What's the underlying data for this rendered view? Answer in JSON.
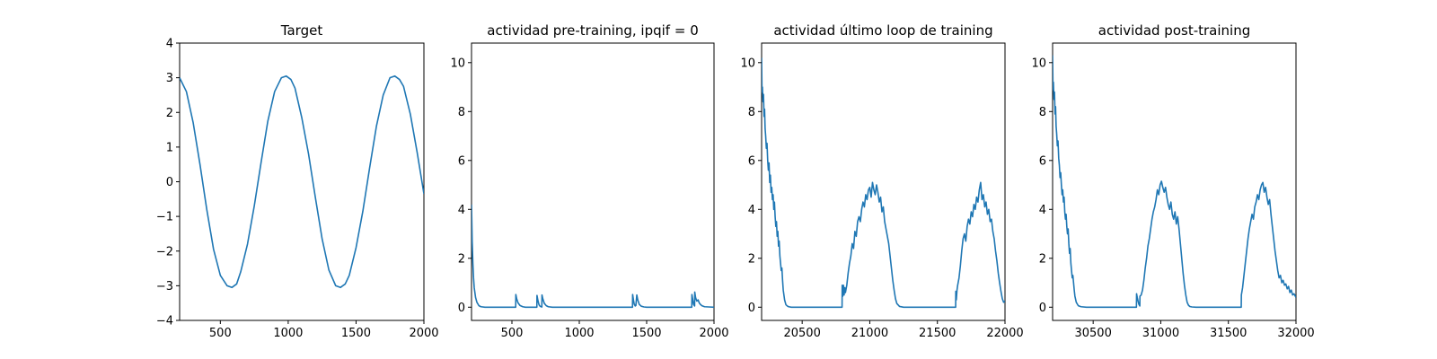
{
  "figure": {
    "line_color": "#1f77b4",
    "background": "#ffffff"
  },
  "chart_data": [
    {
      "type": "line",
      "title": "Target",
      "xlabel": "",
      "ylabel": "",
      "xlim": [
        200,
        2000
      ],
      "ylim": [
        -4,
        4
      ],
      "xticks": [
        500,
        1000,
        1500,
        2000
      ],
      "yticks": [
        -4,
        -3,
        -2,
        -1,
        0,
        1,
        2,
        3,
        4
      ],
      "grid": false,
      "series": [
        {
          "x": [
            200,
            250,
            300,
            350,
            400,
            450,
            500,
            550,
            585,
            620,
            650,
            700,
            750,
            800,
            850,
            900,
            950,
            985,
            1020,
            1050,
            1100,
            1150,
            1200,
            1250,
            1300,
            1350,
            1385,
            1420,
            1450,
            1500,
            1550,
            1600,
            1650,
            1700,
            1750,
            1785,
            1820,
            1850,
            1900,
            1950,
            2000
          ],
          "y": [
            3.0,
            2.6,
            1.7,
            0.5,
            -0.8,
            -1.95,
            -2.7,
            -3.0,
            -3.05,
            -2.95,
            -2.6,
            -1.8,
            -0.7,
            0.55,
            1.75,
            2.6,
            3.0,
            3.05,
            2.95,
            2.7,
            1.85,
            0.8,
            -0.45,
            -1.65,
            -2.55,
            -3.0,
            -3.05,
            -2.95,
            -2.7,
            -1.9,
            -0.85,
            0.4,
            1.6,
            2.5,
            3.0,
            3.05,
            2.95,
            2.75,
            1.95,
            0.85,
            -0.35
          ]
        }
      ]
    },
    {
      "type": "line",
      "title": "actividad pre-training, ipqif = 0",
      "xlabel": "",
      "ylabel": "",
      "xlim": [
        200,
        2000
      ],
      "ylim": [
        -0.54,
        10.8
      ],
      "xticks": [
        500,
        1000,
        1500,
        2000
      ],
      "yticks": [
        0,
        2,
        4,
        6,
        8,
        10
      ],
      "grid": false,
      "series": [
        {
          "x": [
            200,
            205,
            210,
            215,
            220,
            230,
            240,
            255,
            270,
            300,
            350,
            400,
            450,
            500,
            528,
            529,
            535,
            545,
            560,
            580,
            600,
            650,
            685,
            686,
            692,
            700,
            705,
            715,
            722,
            723,
            729,
            740,
            755,
            770,
            800,
            900,
            1000,
            1100,
            1200,
            1300,
            1395,
            1396,
            1402,
            1408,
            1415,
            1420,
            1427,
            1434,
            1445,
            1460,
            1480,
            1500,
            1600,
            1700,
            1800,
            1835,
            1836,
            1842,
            1848,
            1856,
            1857,
            1863,
            1872,
            1882,
            1890,
            1898,
            1910,
            1930,
            1960,
            2000
          ],
          "y": [
            4.2,
            2.7,
            1.8,
            1.2,
            0.8,
            0.4,
            0.2,
            0.06,
            0.02,
            0.0,
            0.0,
            0.0,
            0.0,
            0.0,
            0.0,
            0.52,
            0.35,
            0.18,
            0.07,
            0.02,
            0.0,
            0.0,
            0.0,
            0.48,
            0.3,
            0.12,
            0.06,
            0.02,
            0.01,
            0.5,
            0.35,
            0.16,
            0.06,
            0.02,
            0.0,
            0.0,
            0.0,
            0.0,
            0.0,
            0.0,
            0.0,
            0.52,
            0.3,
            0.12,
            0.05,
            0.07,
            0.5,
            0.3,
            0.12,
            0.04,
            0.01,
            0.0,
            0.0,
            0.0,
            0.0,
            0.0,
            0.52,
            0.32,
            0.12,
            0.05,
            0.62,
            0.4,
            0.25,
            0.3,
            0.18,
            0.12,
            0.06,
            0.02,
            0.01,
            0.0
          ]
        }
      ]
    },
    {
      "type": "line",
      "title": "actividad último loop de training",
      "xlabel": "",
      "ylabel": "",
      "xlim": [
        20200,
        22000
      ],
      "ylim": [
        -0.54,
        10.8
      ],
      "xticks": [
        20500,
        21000,
        21500,
        22000
      ],
      "yticks": [
        0,
        2,
        4,
        6,
        8,
        10
      ],
      "grid": false,
      "series": [
        {
          "x": [
            20200,
            20203,
            20206,
            20210,
            20214,
            20218,
            20222,
            20226,
            20230,
            20235,
            20240,
            20245,
            20250,
            20255,
            20260,
            20265,
            20270,
            20275,
            20280,
            20285,
            20290,
            20295,
            20300,
            20305,
            20310,
            20315,
            20320,
            20325,
            20330,
            20335,
            20340,
            20345,
            20350,
            20355,
            20360,
            20370,
            20380,
            20390,
            20400,
            20420,
            20450,
            20500,
            20550,
            20600,
            20650,
            20700,
            20750,
            20795,
            20796,
            20800,
            20805,
            20810,
            20815,
            20820,
            20830,
            20840,
            20850,
            20860,
            20870,
            20880,
            20890,
            20900,
            20910,
            20920,
            20930,
            20940,
            20950,
            20960,
            20970,
            20980,
            20990,
            21000,
            21010,
            21020,
            21030,
            21040,
            21050,
            21060,
            21070,
            21080,
            21090,
            21100,
            21110,
            21120,
            21130,
            21140,
            21150,
            21160,
            21170,
            21180,
            21190,
            21200,
            21220,
            21250,
            21300,
            21400,
            21500,
            21600,
            21635,
            21636,
            21640,
            21645,
            21650,
            21660,
            21670,
            21680,
            21690,
            21700,
            21710,
            21720,
            21730,
            21740,
            21750,
            21760,
            21770,
            21780,
            21790,
            21800,
            21810,
            21820,
            21830,
            21840,
            21850,
            21860,
            21870,
            21880,
            21890,
            21900,
            21910,
            21920,
            21930,
            21940,
            21950,
            21960,
            21970,
            21980,
            21990,
            22000
          ],
          "y": [
            10.2,
            8.8,
            9.0,
            8.4,
            8.7,
            7.8,
            8.1,
            7.3,
            7.0,
            6.5,
            6.7,
            6.0,
            5.6,
            5.9,
            5.1,
            5.4,
            4.7,
            4.9,
            4.4,
            4.6,
            4.0,
            4.3,
            3.7,
            3.3,
            3.5,
            2.9,
            3.1,
            2.5,
            2.7,
            2.1,
            1.8,
            1.5,
            1.6,
            1.1,
            0.7,
            0.3,
            0.1,
            0.05,
            0.02,
            0.0,
            0.0,
            0.0,
            0.0,
            0.0,
            0.0,
            0.0,
            0.0,
            0.0,
            0.9,
            0.45,
            0.9,
            0.5,
            0.8,
            0.6,
            0.9,
            1.4,
            1.8,
            2.1,
            2.6,
            2.4,
            3.1,
            2.9,
            3.5,
            3.7,
            3.5,
            4.0,
            4.3,
            4.1,
            4.6,
            4.4,
            4.8,
            4.9,
            4.5,
            5.1,
            4.8,
            4.6,
            5.0,
            4.7,
            4.3,
            4.5,
            3.9,
            4.1,
            3.5,
            3.2,
            2.9,
            2.6,
            2.1,
            1.6,
            1.1,
            0.7,
            0.35,
            0.15,
            0.03,
            0.0,
            0.0,
            0.0,
            0.0,
            0.0,
            0.0,
            0.65,
            0.3,
            0.7,
            0.9,
            1.2,
            1.7,
            2.3,
            2.8,
            3.0,
            2.7,
            3.3,
            3.6,
            3.4,
            3.9,
            3.7,
            4.2,
            4.0,
            4.5,
            4.3,
            4.8,
            5.1,
            4.4,
            4.6,
            4.1,
            4.3,
            3.8,
            4.0,
            3.5,
            3.6,
            3.1,
            2.8,
            2.3,
            1.9,
            1.4,
            1.0,
            0.65,
            0.35,
            0.2,
            0.25
          ]
        }
      ]
    },
    {
      "type": "line",
      "title": "actividad post-training",
      "xlabel": "",
      "ylabel": "",
      "xlim": [
        30200,
        32000
      ],
      "ylim": [
        -0.54,
        10.8
      ],
      "xticks": [
        30500,
        31000,
        31500,
        32000
      ],
      "yticks": [
        0,
        2,
        4,
        6,
        8,
        10
      ],
      "grid": false,
      "series": [
        {
          "x": [
            30200,
            30203,
            30206,
            30210,
            30214,
            30218,
            30222,
            30226,
            30230,
            30235,
            30240,
            30245,
            30250,
            30255,
            30260,
            30265,
            30270,
            30275,
            30280,
            30285,
            30290,
            30295,
            30300,
            30305,
            30310,
            30315,
            30320,
            30325,
            30330,
            30335,
            30340,
            30345,
            30350,
            30355,
            30360,
            30365,
            30375,
            30390,
            30410,
            30450,
            30500,
            30600,
            30700,
            30800,
            30820,
            30821,
            30826,
            30832,
            30838,
            30845,
            30846,
            30855,
            30865,
            30875,
            30885,
            30895,
            30905,
            30915,
            30925,
            30935,
            30945,
            30955,
            30965,
            30975,
            30985,
            30995,
            31005,
            31015,
            31025,
            31035,
            31045,
            31055,
            31065,
            31075,
            31085,
            31095,
            31105,
            31115,
            31125,
            31135,
            31145,
            31155,
            31165,
            31175,
            31185,
            31195,
            31205,
            31215,
            31230,
            31260,
            31300,
            31400,
            31500,
            31595,
            31596,
            31605,
            31615,
            31625,
            31635,
            31645,
            31655,
            31665,
            31675,
            31685,
            31695,
            31705,
            31715,
            31725,
            31735,
            31745,
            31755,
            31765,
            31775,
            31785,
            31795,
            31805,
            31815,
            31825,
            31835,
            31845,
            31855,
            31865,
            31875,
            31885,
            31895,
            31905,
            31915,
            31925,
            31935,
            31945,
            31955,
            31965,
            31975,
            31985,
            31995,
            32000
          ],
          "y": [
            10.3,
            8.9,
            9.2,
            8.5,
            8.8,
            7.9,
            8.2,
            7.4,
            7.1,
            6.6,
            6.8,
            6.1,
            5.8,
            5.3,
            5.5,
            5.0,
            4.6,
            4.8,
            4.3,
            4.5,
            3.9,
            3.6,
            3.8,
            3.3,
            3.0,
            3.2,
            2.6,
            2.2,
            2.4,
            1.8,
            1.5,
            1.2,
            1.3,
            1.0,
            0.7,
            0.45,
            0.2,
            0.06,
            0.02,
            0.0,
            0.0,
            0.0,
            0.0,
            0.0,
            0.0,
            0.55,
            0.4,
            0.25,
            0.12,
            0.05,
            0.45,
            0.5,
            0.7,
            1.1,
            1.6,
            2.0,
            2.5,
            2.8,
            3.2,
            3.6,
            3.9,
            4.1,
            4.4,
            4.8,
            4.6,
            5.0,
            5.15,
            4.9,
            4.7,
            4.9,
            4.5,
            4.2,
            4.0,
            4.3,
            3.8,
            3.6,
            3.9,
            3.4,
            3.7,
            3.2,
            2.6,
            2.0,
            1.4,
            0.9,
            0.5,
            0.2,
            0.08,
            0.03,
            0.01,
            0.0,
            0.0,
            0.0,
            0.0,
            0.0,
            0.5,
            0.8,
            1.3,
            1.8,
            2.3,
            2.8,
            3.2,
            3.5,
            3.8,
            3.6,
            4.1,
            4.3,
            4.6,
            4.4,
            4.8,
            5.0,
            5.1,
            4.7,
            4.9,
            4.5,
            4.2,
            4.4,
            3.8,
            3.3,
            2.8,
            2.3,
            1.9,
            1.5,
            1.2,
            1.3,
            1.0,
            1.1,
            0.9,
            0.95,
            0.75,
            0.85,
            0.6,
            0.7,
            0.5,
            0.55,
            0.45,
            0.4
          ]
        }
      ]
    }
  ]
}
